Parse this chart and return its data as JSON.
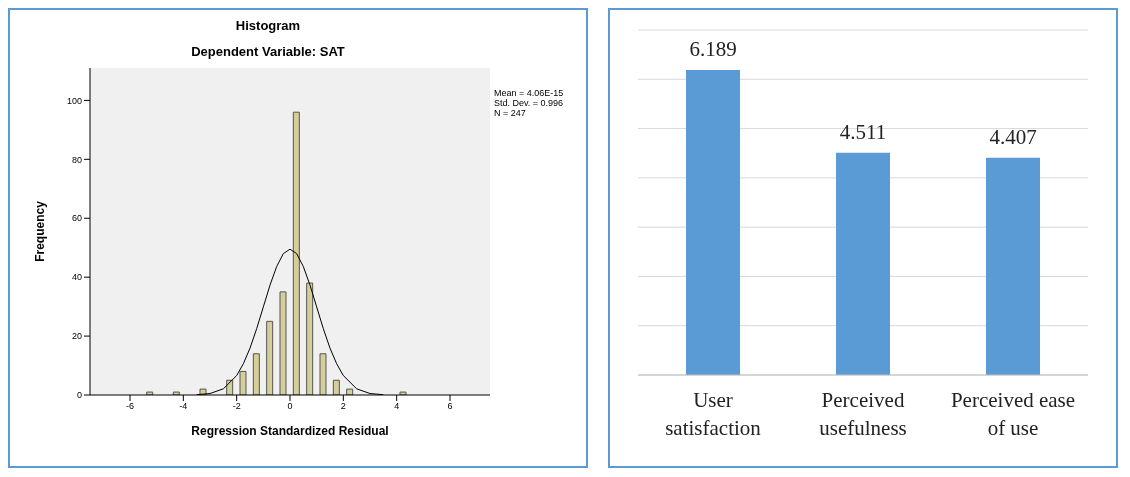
{
  "chart_data": [
    {
      "type": "histogram",
      "title": "Histogram",
      "subtitle": "Dependent Variable: SAT",
      "xlabel": "Regression Standardized Residual",
      "ylabel": "Frequency",
      "bins": [
        -5.5,
        -5,
        -4.5,
        -4,
        -3.5,
        -3,
        -2.5,
        -2,
        -1.5,
        -1,
        -0.5,
        0,
        0.5,
        1,
        1.5,
        2,
        2.5,
        3,
        3.5,
        4,
        4.5
      ],
      "values": [
        1,
        0,
        1,
        0,
        2,
        0,
        5,
        8,
        14,
        25,
        35,
        96,
        38,
        14,
        5,
        2,
        0,
        0,
        0,
        1
      ],
      "color": "#d4cf99",
      "series": [
        {
          "type": "line",
          "color": "#000000",
          "x": [
            -3.5,
            -3,
            -2.5,
            -2,
            -1.75,
            -1.5,
            -1.25,
            -1,
            -0.75,
            -0.5,
            -0.25,
            0,
            0.25,
            0.5,
            0.75,
            1,
            1.25,
            1.5,
            1.75,
            2,
            2.5,
            3,
            3.5
          ],
          "values": [
            0.1,
            0.5,
            2.1,
            6.6,
            10.6,
            15.9,
            22.5,
            29.9,
            37.3,
            43.6,
            48,
            49.5,
            48,
            43.6,
            37.3,
            29.9,
            22.5,
            15.9,
            10.6,
            6.6,
            2.1,
            0.5,
            0.1
          ]
        }
      ],
      "xlim": [
        -7.5,
        7.5
      ],
      "xticks": [
        -6,
        -4,
        -2,
        0,
        2,
        4,
        6
      ],
      "ylim": [
        0,
        111
      ],
      "yticks": [
        0,
        20,
        40,
        60,
        80,
        100
      ],
      "grid": false,
      "annotations": [
        "Mean = 4.06E-15",
        "Std. Dev. = 0.996",
        "N = 247"
      ]
    },
    {
      "type": "bar",
      "categories": [
        "User satisfaction",
        "Perceived usefulness",
        "Perceived ease of use"
      ],
      "values": [
        6.189,
        4.511,
        4.407
      ],
      "color": "#5b9bd5",
      "ylim": [
        0,
        7
      ],
      "yticks": [
        {
          "value": 0,
          "label": null
        },
        {
          "value": 1,
          "label": null
        },
        {
          "value": 2,
          "label": null
        },
        {
          "value": 3,
          "label": null
        },
        {
          "value": 4,
          "label": null
        },
        {
          "value": 5,
          "label": null
        },
        {
          "value": 6,
          "label": null
        },
        {
          "value": 7,
          "label": null
        }
      ],
      "grid": "y",
      "tick_labels": "x",
      "data_labels": true
    }
  ]
}
